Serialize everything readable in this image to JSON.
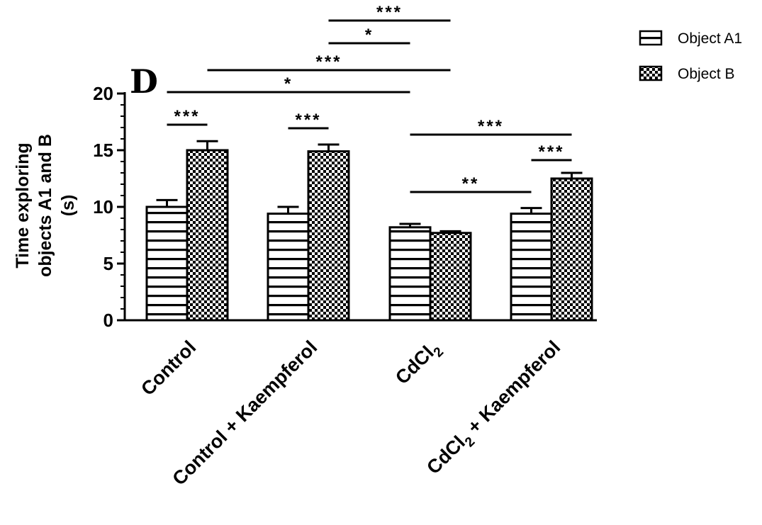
{
  "chart_data": {
    "type": "bar",
    "panel_label": "D",
    "categories": [
      {
        "text": "Control",
        "sub": "",
        "rest": ""
      },
      {
        "text": "Control + Kaempferol",
        "sub": "",
        "rest": ""
      },
      {
        "text": "CdCl",
        "sub": "2",
        "rest": ""
      },
      {
        "text": "CdCl",
        "sub": "2",
        "rest": " + Kaempferol"
      }
    ],
    "series": [
      {
        "name": "Object A1",
        "pattern": "horizontal-stripes",
        "values": [
          10.0,
          9.4,
          8.2,
          9.4
        ],
        "errors": [
          0.6,
          0.6,
          0.3,
          0.5
        ]
      },
      {
        "name": "Object B",
        "pattern": "checkerboard",
        "values": [
          15.0,
          14.9,
          7.7,
          12.5
        ],
        "errors": [
          0.8,
          0.6,
          0.15,
          0.5
        ]
      }
    ],
    "ylabel_lines": [
      "Time exploring",
      "objects A1 and B",
      "(s)"
    ],
    "xlabel": "",
    "ylim": [
      0,
      20
    ],
    "yticks": [
      0,
      5,
      10,
      15,
      20
    ],
    "minor_tick_step": 1,
    "legend_position": "top-right",
    "grid": false,
    "significance": [
      {
        "label": "***",
        "from": [
          0,
          0
        ],
        "to": [
          0,
          1
        ]
      },
      {
        "label": "***",
        "from": [
          1,
          0
        ],
        "to": [
          1,
          1
        ]
      },
      {
        "label": "**",
        "from": [
          2,
          0
        ],
        "to": [
          3,
          0
        ]
      },
      {
        "label": "***",
        "from": [
          3,
          0
        ],
        "to": [
          3,
          1
        ]
      },
      {
        "label": "***",
        "from": [
          2,
          0
        ],
        "to": [
          3,
          1
        ]
      },
      {
        "label": "*",
        "from": [
          0,
          0
        ],
        "to": [
          2,
          0
        ]
      },
      {
        "label": "***",
        "from": [
          0,
          1
        ],
        "to": [
          2,
          1
        ]
      },
      {
        "label": "*",
        "from": [
          1,
          1
        ],
        "to": [
          2,
          0
        ]
      },
      {
        "label": "***",
        "from": [
          1,
          1
        ],
        "to": [
          2,
          1
        ]
      }
    ]
  }
}
